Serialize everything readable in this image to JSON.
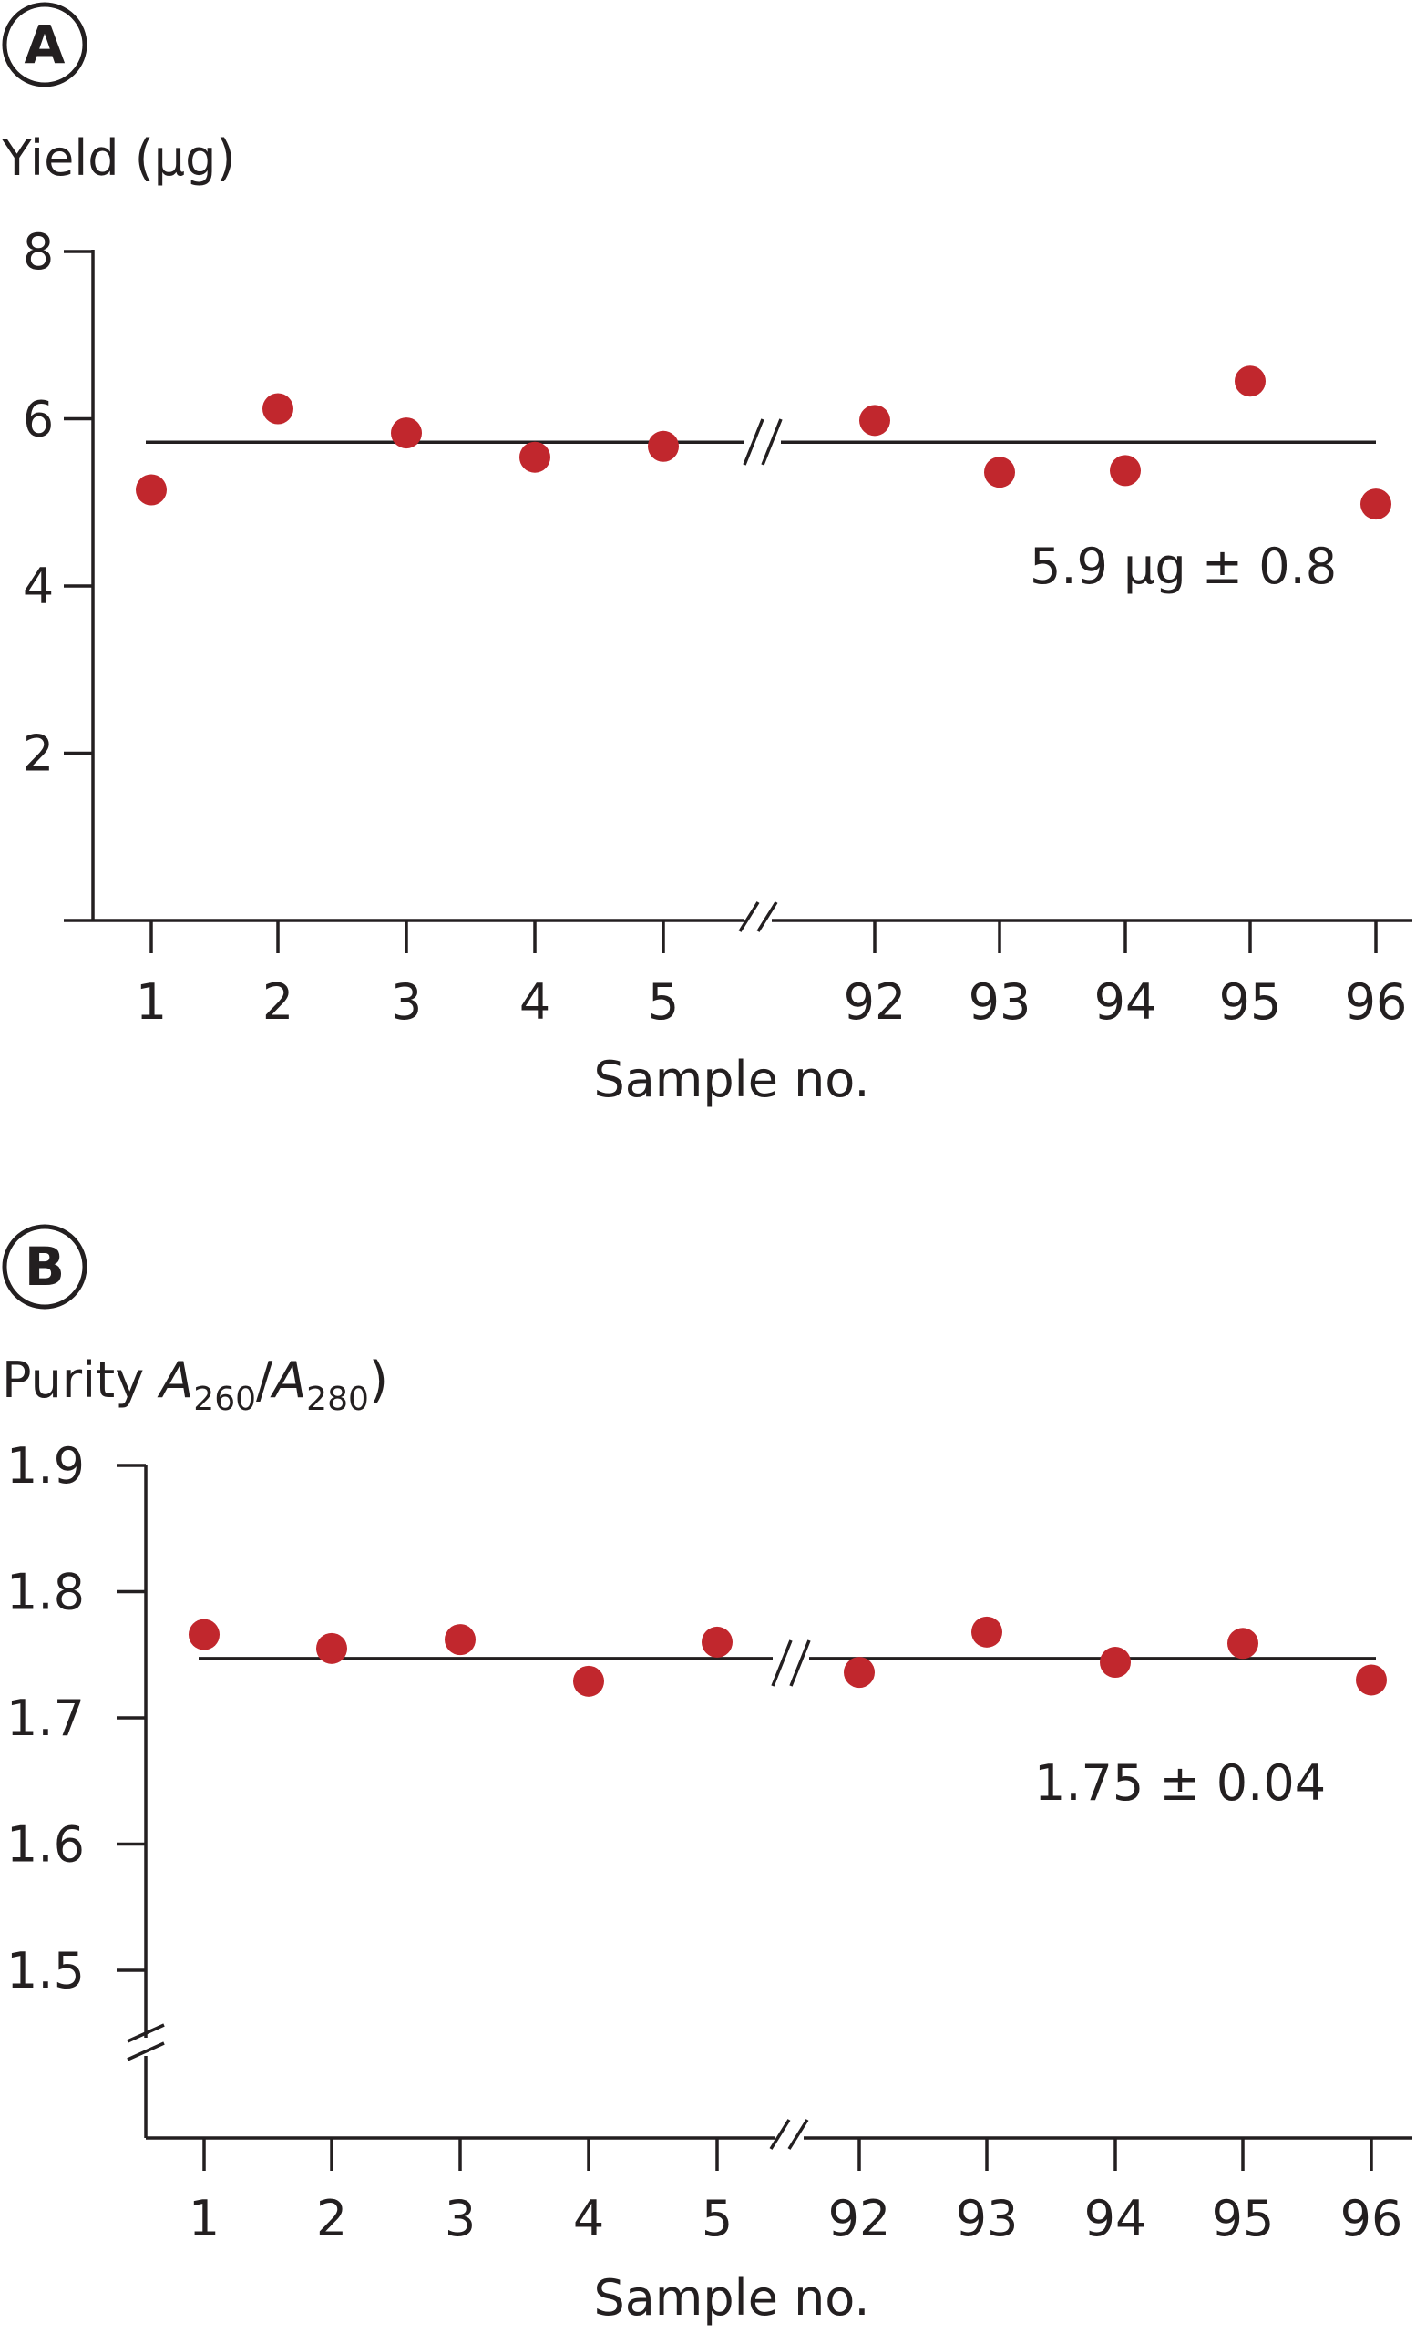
{
  "chart_data": [
    {
      "panel": "A",
      "type": "scatter",
      "categories": [
        "1",
        "2",
        "3",
        "4",
        "5",
        "92",
        "93",
        "94",
        "95",
        "96"
      ],
      "values": [
        5.15,
        6.12,
        5.83,
        5.54,
        5.67,
        5.98,
        5.36,
        5.38,
        6.45,
        4.98
      ],
      "mean_line": 5.72,
      "annotation": "5.9 µg ± 0.8",
      "ylabel": "Yield (µg)",
      "xlabel": "Sample no.",
      "yticks": [
        "2",
        "4",
        "6",
        "8"
      ],
      "ylim": [
        0,
        8
      ],
      "axis_break": "x",
      "point_color": "#c1272d"
    },
    {
      "panel": "B",
      "type": "scatter",
      "categories": [
        "1",
        "2",
        "3",
        "4",
        "5",
        "92",
        "93",
        "94",
        "95",
        "96"
      ],
      "values": [
        1.766,
        1.755,
        1.762,
        1.729,
        1.76,
        1.736,
        1.768,
        1.744,
        1.759,
        1.73
      ],
      "mean_line": 1.747,
      "annotation": "1.75 ± 0.04",
      "ylabel": {
        "prefix": "Purity ",
        "a1": "A",
        "s1": "260",
        "slash": "/",
        "a2": "A",
        "s2": "280",
        "suffix": ")"
      },
      "xlabel": "Sample no.",
      "yticks": [
        "1.5",
        "1.6",
        "1.7",
        "1.8",
        "1.9"
      ],
      "ylim": [
        1.5,
        1.9
      ],
      "axis_break": "x and y",
      "point_color": "#c1272d"
    }
  ]
}
